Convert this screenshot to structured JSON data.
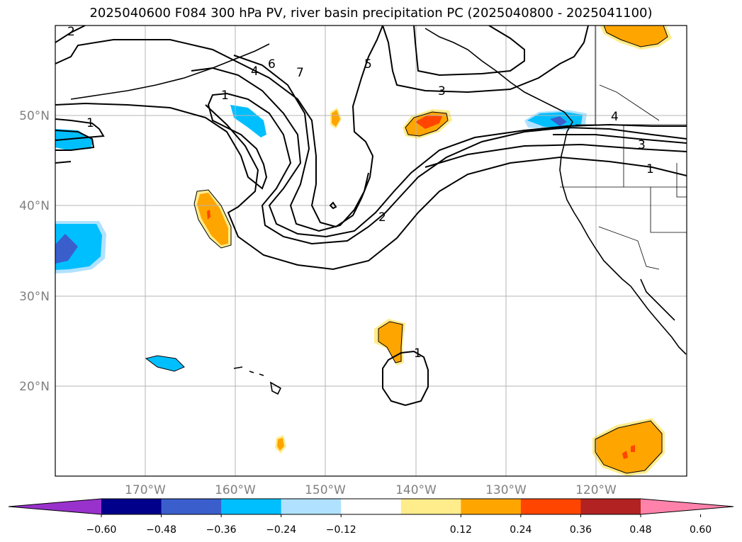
{
  "title": "2025040600 F084 300 hPa PV, river basin precipitation PC (2025040800 - 2025041100)",
  "map": {
    "projection": "PlateCarree",
    "lon_range": [
      -180,
      -110
    ],
    "lat_range": [
      10,
      60
    ],
    "gridlines": true,
    "lat_ticks": [
      "20°N",
      "30°N",
      "40°N",
      "50°N"
    ],
    "lon_ticks": [
      "170°W",
      "160°W",
      "150°W",
      "140°W",
      "130°W",
      "120°W"
    ],
    "contour_labels": [
      "2",
      "6",
      "4",
      "7",
      "5",
      "1",
      "3",
      "1",
      "4",
      "3",
      "1",
      "2",
      "1"
    ]
  },
  "colorbar": {
    "ticks": [
      "−0.60",
      "−0.48",
      "−0.36",
      "−0.24",
      "−0.12",
      "0.12",
      "0.24",
      "0.36",
      "0.48",
      "0.60"
    ],
    "colors": [
      "#9932CC",
      "#00008B",
      "#3A5FCD",
      "#00BFFF",
      "#B0E2FF",
      "#FFFFFF",
      "#FFEC8B",
      "#FFA500",
      "#FF4500",
      "#B22222",
      "#FF82AB"
    ],
    "extend": "both"
  }
}
